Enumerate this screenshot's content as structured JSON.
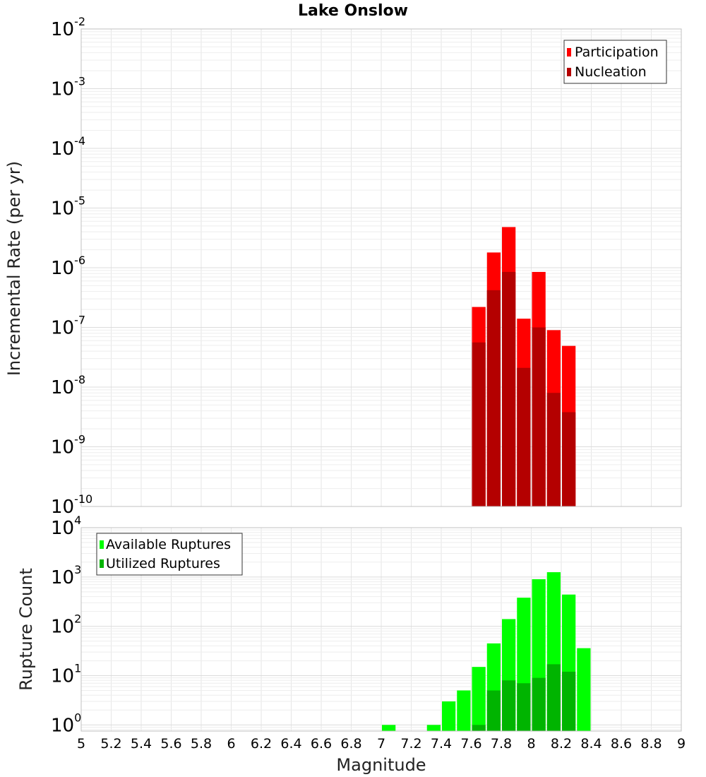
{
  "chart_data": [
    {
      "type": "bar",
      "title": "Lake Onslow",
      "xlabel": "",
      "ylabel": "Incremental Rate (per yr)",
      "xlim": [
        5,
        9
      ],
      "ylim": [
        1e-10,
        0.01
      ],
      "y_scale": "log",
      "y_ticks": [
        {
          "base": "10",
          "exp": "-2"
        },
        {
          "base": "10",
          "exp": "-3"
        },
        {
          "base": "10",
          "exp": "-4"
        },
        {
          "base": "10",
          "exp": "-5"
        },
        {
          "base": "10",
          "exp": "-6"
        },
        {
          "base": "10",
          "exp": "-7"
        },
        {
          "base": "10",
          "exp": "-8"
        },
        {
          "base": "10",
          "exp": "-9"
        },
        {
          "base": "10",
          "exp": "-10"
        }
      ],
      "bin_width": 0.1,
      "grid": true,
      "legend_position": "top-right",
      "x": [
        7.65,
        7.75,
        7.85,
        7.95,
        8.05,
        8.15,
        8.25
      ],
      "series": [
        {
          "name": "Participation",
          "color": "#ff0000",
          "values": [
            2.2e-07,
            1.8e-06,
            4.8e-06,
            1.4e-07,
            8.5e-07,
            9e-08,
            4.9e-08
          ]
        },
        {
          "name": "Nucleation",
          "color": "#b40000",
          "values": [
            5.6e-08,
            4.2e-07,
            8.5e-07,
            2.1e-08,
            1e-07,
            8e-09,
            3.8e-09
          ]
        }
      ]
    },
    {
      "type": "bar",
      "title": "",
      "xlabel": "Magnitude",
      "ylabel": "Rupture Count",
      "xlim": [
        5,
        9
      ],
      "ylim": [
        0.75,
        10000
      ],
      "y_scale": "log",
      "y_ticks": [
        {
          "base": "10",
          "exp": "4"
        },
        {
          "base": "10",
          "exp": "3"
        },
        {
          "base": "10",
          "exp": "2"
        },
        {
          "base": "10",
          "exp": "1"
        },
        {
          "base": "10",
          "exp": "0"
        }
      ],
      "x_tick_labels": [
        "5",
        "5.2",
        "5.4",
        "5.6",
        "5.8",
        "6",
        "6.2",
        "6.4",
        "6.6",
        "6.8",
        "7",
        "7.2",
        "7.4",
        "7.6",
        "7.8",
        "8",
        "8.2",
        "8.4",
        "8.6",
        "8.8",
        "9"
      ],
      "bin_width": 0.1,
      "grid": true,
      "legend_position": "top-left",
      "x": [
        7.05,
        7.35,
        7.45,
        7.55,
        7.65,
        7.75,
        7.85,
        7.95,
        8.05,
        8.15,
        8.25,
        8.35
      ],
      "series": [
        {
          "name": "Available Ruptures",
          "color": "#00ff00",
          "values": [
            1,
            1,
            3,
            5,
            15,
            45,
            140,
            380,
            900,
            1250,
            440,
            36
          ]
        },
        {
          "name": "Utilized Ruptures",
          "color": "#00b400",
          "values": [
            0,
            0,
            0,
            0,
            1,
            5,
            8,
            7,
            9,
            17,
            12,
            0
          ]
        }
      ]
    }
  ]
}
